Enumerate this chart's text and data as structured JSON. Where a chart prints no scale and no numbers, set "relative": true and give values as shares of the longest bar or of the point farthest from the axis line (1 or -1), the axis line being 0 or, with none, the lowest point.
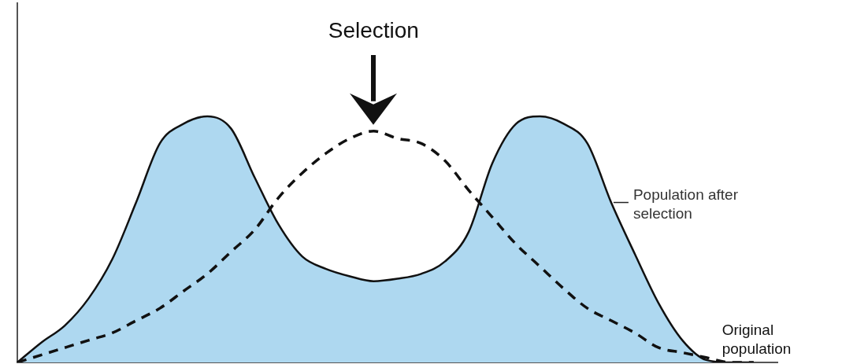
{
  "chart_data": {
    "type": "area",
    "relative": true,
    "annotations": [
      "Selection"
    ],
    "categories": [
      null,
      null,
      null,
      null,
      null,
      null,
      null,
      null,
      null,
      null,
      null,
      null,
      null,
      null,
      null,
      null,
      null,
      null,
      null,
      null,
      null,
      null,
      null,
      null,
      null,
      null,
      null,
      null,
      null,
      null,
      null,
      null,
      null
    ],
    "series": [
      {
        "name": "Population after selection",
        "color": "#aed8f0",
        "values": [
          0,
          0.08,
          0.15,
          0.26,
          0.42,
          0.65,
          0.89,
          0.97,
          1,
          0.95,
          0.75,
          0.56,
          0.43,
          0.38,
          0.35,
          0.33,
          0.34,
          0.36,
          0.41,
          0.53,
          0.81,
          0.97,
          1,
          0.97,
          0.89,
          0.65,
          0.44,
          0.24,
          0.09,
          0.01,
          0,
          0,
          null
        ]
      },
      {
        "name": "Original population",
        "type": "line",
        "color": "#111111",
        "line_style": "dashed",
        "values": [
          0,
          0.03,
          0.06,
          0.09,
          0.12,
          0.17,
          0.22,
          0.29,
          0.36,
          0.45,
          0.54,
          0.67,
          0.77,
          0.85,
          0.91,
          0.94,
          0.91,
          0.89,
          0.82,
          0.7,
          0.59,
          0.48,
          0.39,
          0.3,
          0.22,
          0.17,
          0.12,
          0.06,
          0.04,
          0.02,
          0,
          0,
          null
        ]
      }
    ],
    "legend": false,
    "grid": false,
    "marker": "none"
  }
}
